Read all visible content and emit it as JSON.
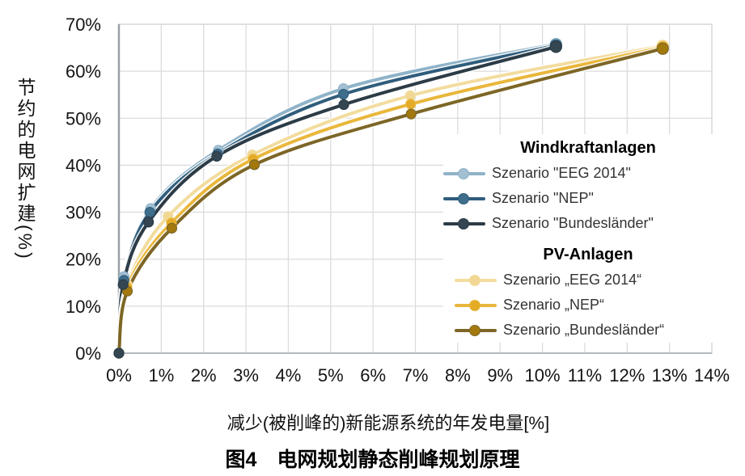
{
  "figure": {
    "caption": "图4　电网规划静态削峰规划原理",
    "xlabel": "减少(被削峰的)新能源系统的年发电量[%]",
    "ylabel": "节约的电网扩建(%)"
  },
  "chart_data": {
    "type": "line",
    "title": "",
    "xlabel": "减少(被削峰的)新能源系统的年发电量[%]",
    "ylabel": "节约的电网扩建(%)",
    "xlim": [
      0,
      14
    ],
    "ylim": [
      0,
      70
    ],
    "x_ticks": [
      "0%",
      "1%",
      "2%",
      "3%",
      "4%",
      "5%",
      "6%",
      "7%",
      "8%",
      "9%",
      "10%",
      "11%",
      "12%",
      "13%",
      "14%"
    ],
    "y_ticks": [
      "0%",
      "10%",
      "20%",
      "30%",
      "40%",
      "50%",
      "60%",
      "70%"
    ],
    "grid": true,
    "legend_position": "inside-right",
    "colors": {
      "grid": "#dcdcdc",
      "axis": "#9aa0a6",
      "border": "#d6d6d6",
      "tick_text": "#141414"
    },
    "groups": [
      {
        "title": "Windkraftanlagen",
        "series": [
          {
            "name": "Szenario \"EEG 2014\"",
            "color": "#8fb3c9",
            "marker_color": "#a3bfd2",
            "points": [
              [
                0,
                0
              ],
              [
                0.12,
                16.3
              ],
              [
                0.75,
                30.8
              ],
              [
                2.35,
                43.2
              ],
              [
                5.3,
                56.3
              ],
              [
                10.32,
                65.8
              ]
            ]
          },
          {
            "name": "Szenario \"NEP\"",
            "color": "#2f5d7c",
            "marker_color": "#3f6e8c",
            "points": [
              [
                0,
                0
              ],
              [
                0.12,
                15.5
              ],
              [
                0.73,
                30.0
              ],
              [
                2.33,
                42.4
              ],
              [
                5.3,
                55.1
              ],
              [
                10.32,
                65.5
              ]
            ]
          },
          {
            "name": "Szenario \"Bundesländer\"",
            "color": "#2c3c47",
            "marker_color": "#344651",
            "points": [
              [
                0,
                0
              ],
              [
                0.1,
                14.6
              ],
              [
                0.7,
                27.9
              ],
              [
                2.31,
                41.9
              ],
              [
                5.31,
                52.9
              ],
              [
                10.32,
                65.2
              ]
            ]
          }
        ]
      },
      {
        "title": "PV-Anlagen",
        "series": [
          {
            "name": "Szenario „EEG 2014“",
            "color": "#f2dc9e",
            "marker_color": "#f0d794",
            "points": [
              [
                0,
                0
              ],
              [
                0.2,
                14.6
              ],
              [
                1.16,
                29.1
              ],
              [
                3.15,
                42.2
              ],
              [
                6.88,
                54.8
              ],
              [
                12.84,
                65.4
              ]
            ]
          },
          {
            "name": "Szenario „NEP“",
            "color": "#e9b73c",
            "marker_color": "#e4ab27",
            "points": [
              [
                0,
                0
              ],
              [
                0.19,
                14.0
              ],
              [
                1.24,
                27.7
              ],
              [
                3.17,
                41.3
              ],
              [
                6.89,
                53.0
              ],
              [
                12.84,
                65.1
              ]
            ]
          },
          {
            "name": "Szenario „Bundesländer“",
            "color": "#7d6626",
            "marker_color": "#a3790e",
            "points": [
              [
                0,
                0
              ],
              [
                0.2,
                13.2
              ],
              [
                1.25,
                26.6
              ],
              [
                3.2,
                40.1
              ],
              [
                6.9,
                50.9
              ],
              [
                12.84,
                64.8
              ]
            ]
          }
        ]
      }
    ]
  }
}
